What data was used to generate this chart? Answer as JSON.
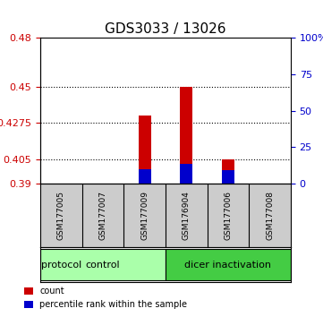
{
  "title": "GDS3033 / 13026",
  "samples": [
    "GSM177005",
    "GSM177007",
    "GSM177009",
    "GSM176904",
    "GSM177006",
    "GSM177008"
  ],
  "left_ylim": [
    0.39,
    0.48
  ],
  "left_yticks": [
    0.39,
    0.405,
    0.4275,
    0.45,
    0.48
  ],
  "left_yticklabels": [
    "0.39",
    "0.405",
    "0.4275",
    "0.45",
    "0.48"
  ],
  "right_ylim": [
    0,
    100
  ],
  "right_yticks": [
    0,
    25,
    50,
    75,
    100
  ],
  "right_yticklabels": [
    "0",
    "25",
    "50",
    "75",
    "100%"
  ],
  "red_values": [
    0.39,
    0.39,
    0.432,
    0.45,
    0.405,
    0.39
  ],
  "blue_values": [
    0.39,
    0.39,
    0.399,
    0.402,
    0.398,
    0.39
  ],
  "red_color": "#cc0000",
  "blue_color": "#0000cc",
  "bar_width": 0.5,
  "grid_color": "#000000",
  "groups": [
    {
      "label": "control",
      "start": 0,
      "end": 2,
      "color": "#aaffaa"
    },
    {
      "label": "dicer inactivation",
      "start": 3,
      "end": 5,
      "color": "#44cc44"
    }
  ],
  "protocol_label": "protocol",
  "legend_items": [
    {
      "color": "#cc0000",
      "label": "count"
    },
    {
      "color": "#0000cc",
      "label": "percentile rank within the sample"
    }
  ],
  "bg_color": "#ffffff",
  "plot_bg_color": "#ffffff",
  "sample_box_color": "#cccccc",
  "base_value": 0.39
}
